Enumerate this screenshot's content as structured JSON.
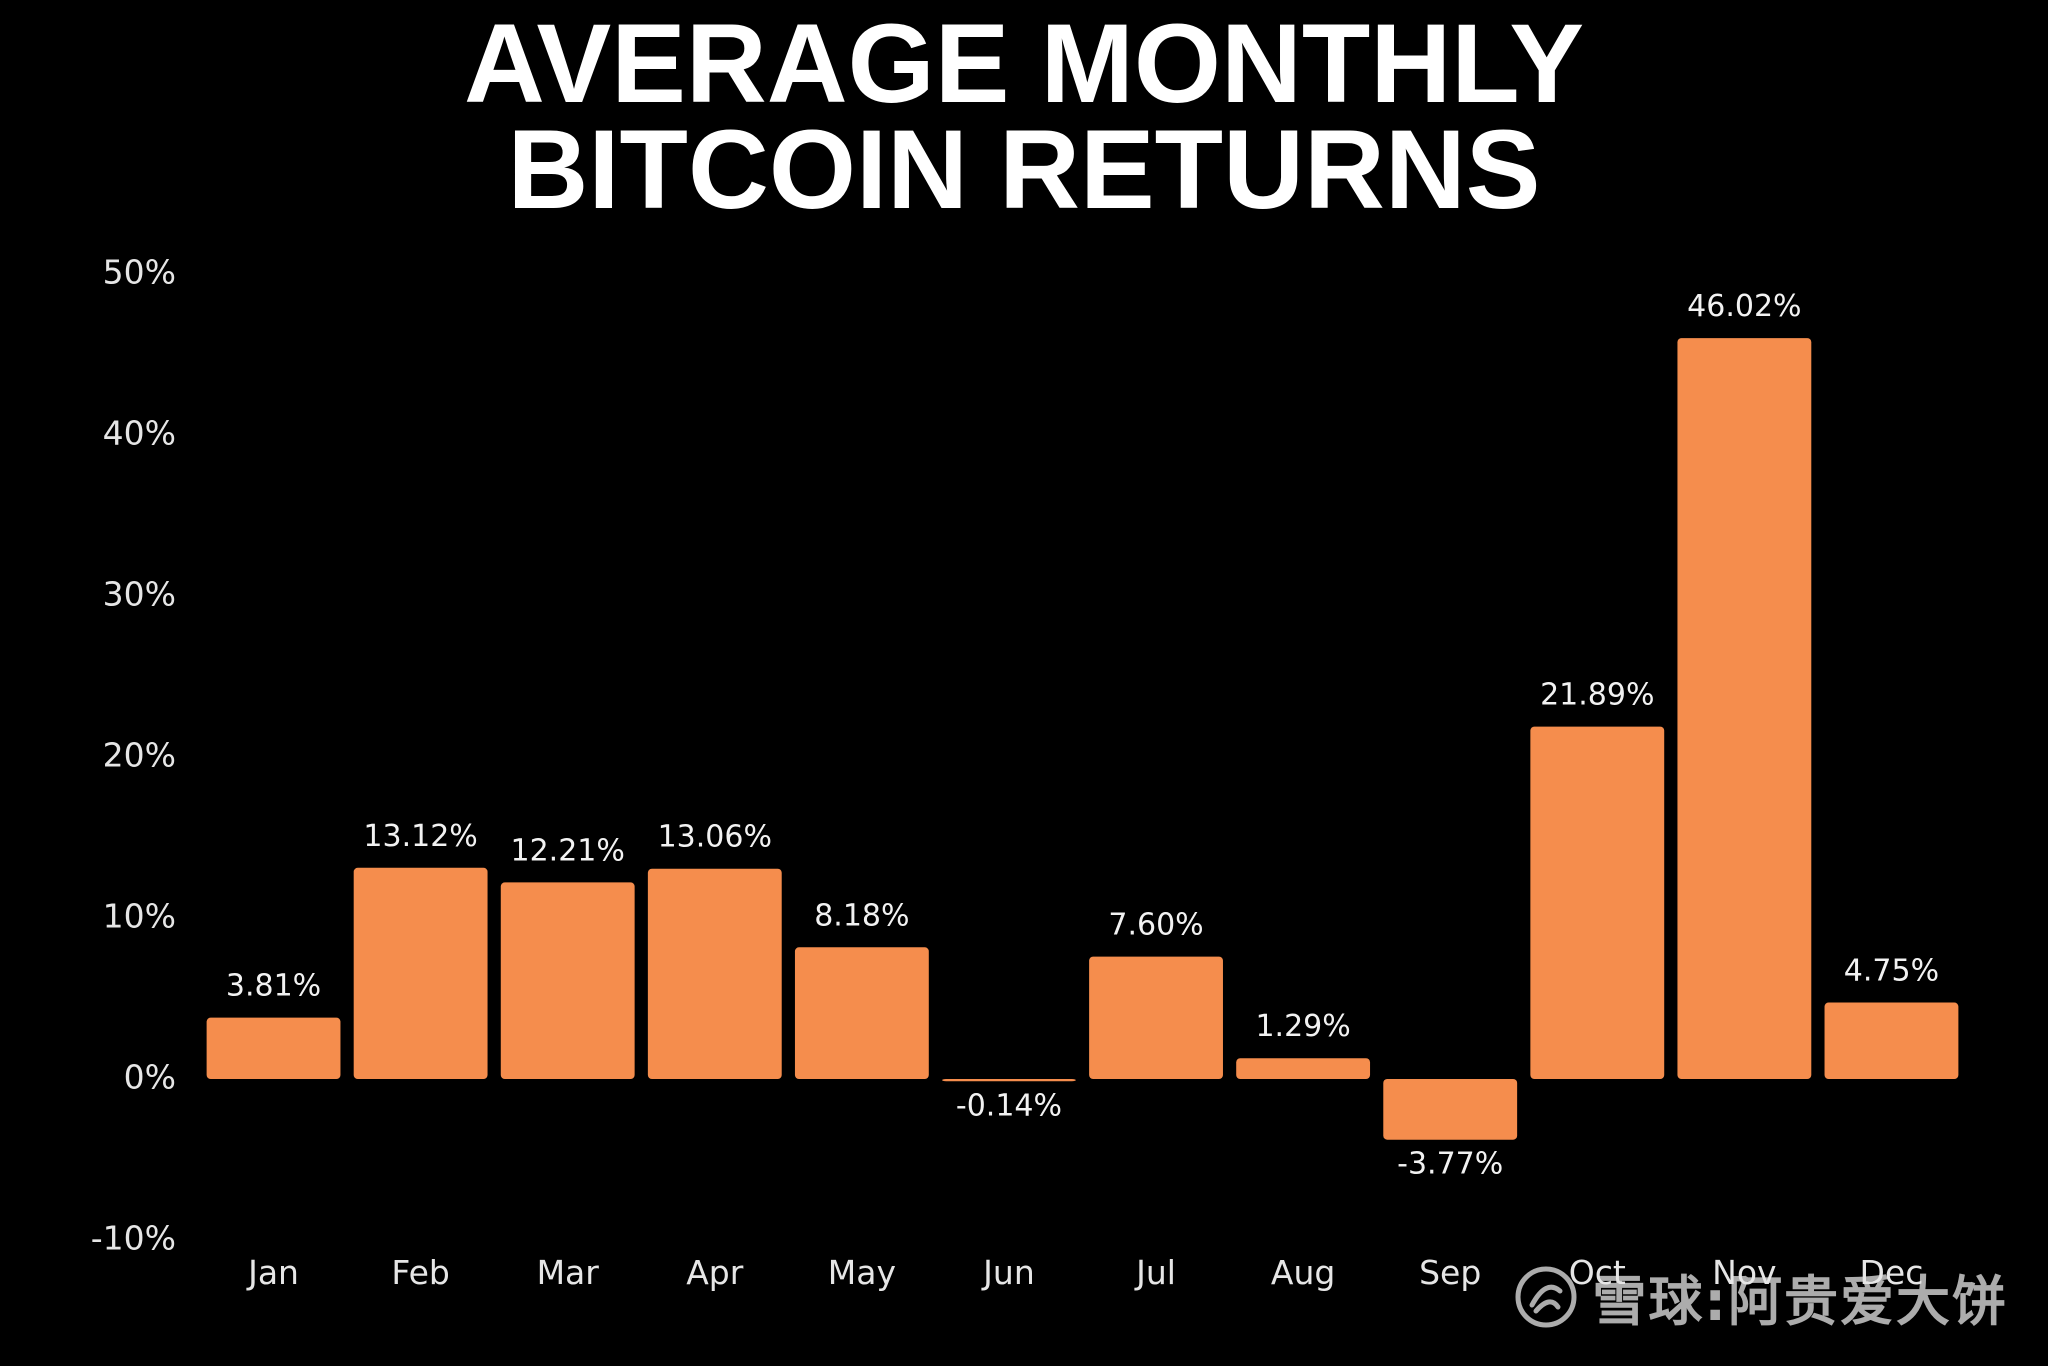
{
  "chart_data": {
    "type": "bar",
    "title_lines": [
      "AVERAGE MONTHLY",
      "BITCOIN RETURNS"
    ],
    "categories": [
      "Jan",
      "Feb",
      "Mar",
      "Apr",
      "May",
      "Jun",
      "Jul",
      "Aug",
      "Sep",
      "Oct",
      "Nov",
      "Dec"
    ],
    "values": [
      3.81,
      13.12,
      12.21,
      13.06,
      8.18,
      -0.14,
      7.6,
      1.29,
      -3.77,
      21.89,
      46.02,
      4.75
    ],
    "value_labels": [
      "3.81%",
      "13.12%",
      "12.21%",
      "13.06%",
      "8.18%",
      "-0.14%",
      "7.60%",
      "1.29%",
      "-3.77%",
      "21.89%",
      "46.02%",
      "4.75%"
    ],
    "yticks": [
      -10,
      0,
      10,
      20,
      30,
      40,
      50
    ],
    "ytick_labels": [
      "-10%",
      "0%",
      "10%",
      "20%",
      "30%",
      "40%",
      "50%"
    ],
    "ylim": [
      -10,
      50
    ],
    "xlabel": "",
    "ylabel": "",
    "grid": false,
    "legend": "none",
    "bar_color": "#F58D4D",
    "background_color": "#000000",
    "text_color": "#FFFFFF"
  },
  "watermark": {
    "text": "雪球:阿贵爱大饼",
    "icon": "snowball-logo-icon"
  }
}
